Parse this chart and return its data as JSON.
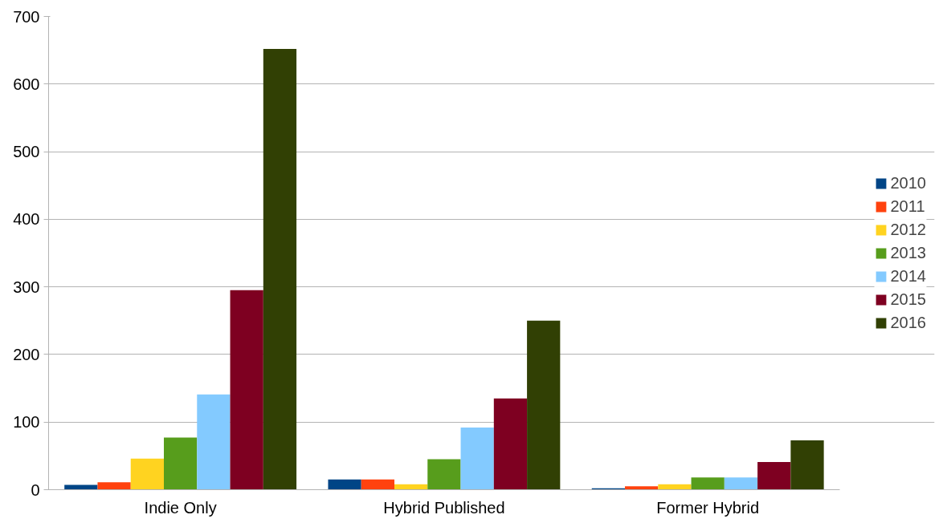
{
  "chart_data": {
    "type": "bar",
    "categories": [
      "Indie Only",
      "Hybrid Published",
      "Former Hybrid"
    ],
    "series": [
      {
        "name": "2010",
        "color": "#004586",
        "values": [
          7,
          15,
          2
        ]
      },
      {
        "name": "2011",
        "color": "#ff420e",
        "values": [
          11,
          15,
          5
        ]
      },
      {
        "name": "2012",
        "color": "#ffd320",
        "values": [
          46,
          8,
          8
        ]
      },
      {
        "name": "2013",
        "color": "#579d1c",
        "values": [
          77,
          45,
          18
        ]
      },
      {
        "name": "2014",
        "color": "#83caff",
        "values": [
          141,
          92,
          18
        ]
      },
      {
        "name": "2015",
        "color": "#7e0021",
        "values": [
          295,
          135,
          41
        ]
      },
      {
        "name": "2016",
        "color": "#314004",
        "values": [
          652,
          250,
          73
        ]
      }
    ],
    "ylim": [
      0,
      700
    ],
    "yticks": [
      0,
      100,
      200,
      300,
      400,
      500,
      600,
      700
    ],
    "grid": "y",
    "legend": "right"
  }
}
